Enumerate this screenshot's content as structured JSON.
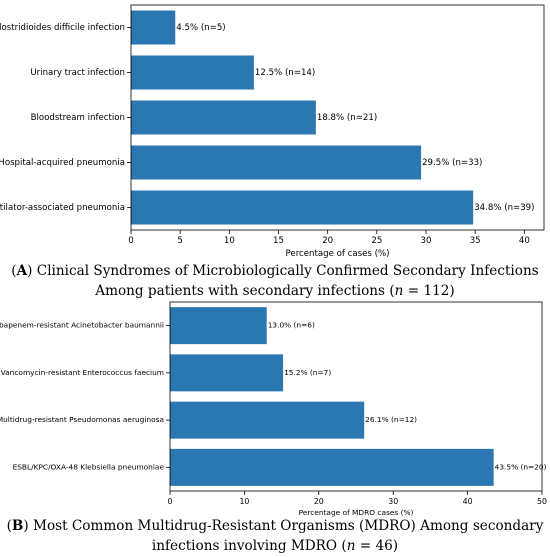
{
  "chart_data": [
    {
      "type": "bar",
      "orientation": "horizontal",
      "categories": [
        "Ventilator-associated pneumonia",
        "Hospital-acquired pneumonia",
        "Bloodstream infection",
        "Urinary tract infection",
        "Clostridioides difficile infection"
      ],
      "values": [
        34.8,
        29.5,
        18.8,
        12.5,
        4.5
      ],
      "data_labels": [
        "34.8% (n=39)",
        "29.5% (n=33)",
        "18.8% (n=21)",
        "12.5% (n=14)",
        "4.5% (n=5)"
      ],
      "xlabel": "Percentage of cases (%)",
      "xlim": [
        0,
        42
      ],
      "xticks": [
        0,
        5,
        10,
        15,
        20,
        25,
        30,
        35,
        40
      ],
      "bar_color": "#2b77b2",
      "grid": false,
      "caption": {
        "letter": "A",
        "text": "Clinical Syndromes of Microbiologically Confirmed Secondary Infections Among patients with secondary infections",
        "n_var": "n",
        "n_text": " = 112)"
      }
    },
    {
      "type": "bar",
      "orientation": "horizontal",
      "categories": [
        "ESBL/KPC/OXA-48 Klebsiella pneumoniae",
        "Multidrug-resistant Pseudomonas aeruginosa",
        "Vancomycin-resistant Enterococcus faecium",
        "Carbapenem-resistant Acinetobacter baumannii"
      ],
      "values": [
        43.5,
        26.1,
        15.2,
        13.0
      ],
      "data_labels": [
        "43.5% (n=20)",
        "26.1% (n=12)",
        "15.2% (n=7)",
        "13.0% (n=6)"
      ],
      "xlabel": "Percentage of MDRO cases (%)",
      "xlim": [
        0,
        50
      ],
      "xticks": [
        0,
        10,
        20,
        30,
        40,
        50
      ],
      "bar_color": "#2b77b2",
      "grid": false,
      "caption": {
        "letter": "B",
        "text": "Most Common Multidrug-Resistant Organisms (MDRO) Among secondary infections involving MDRO",
        "n_var": "n",
        "n_text": " = 46)"
      }
    }
  ]
}
